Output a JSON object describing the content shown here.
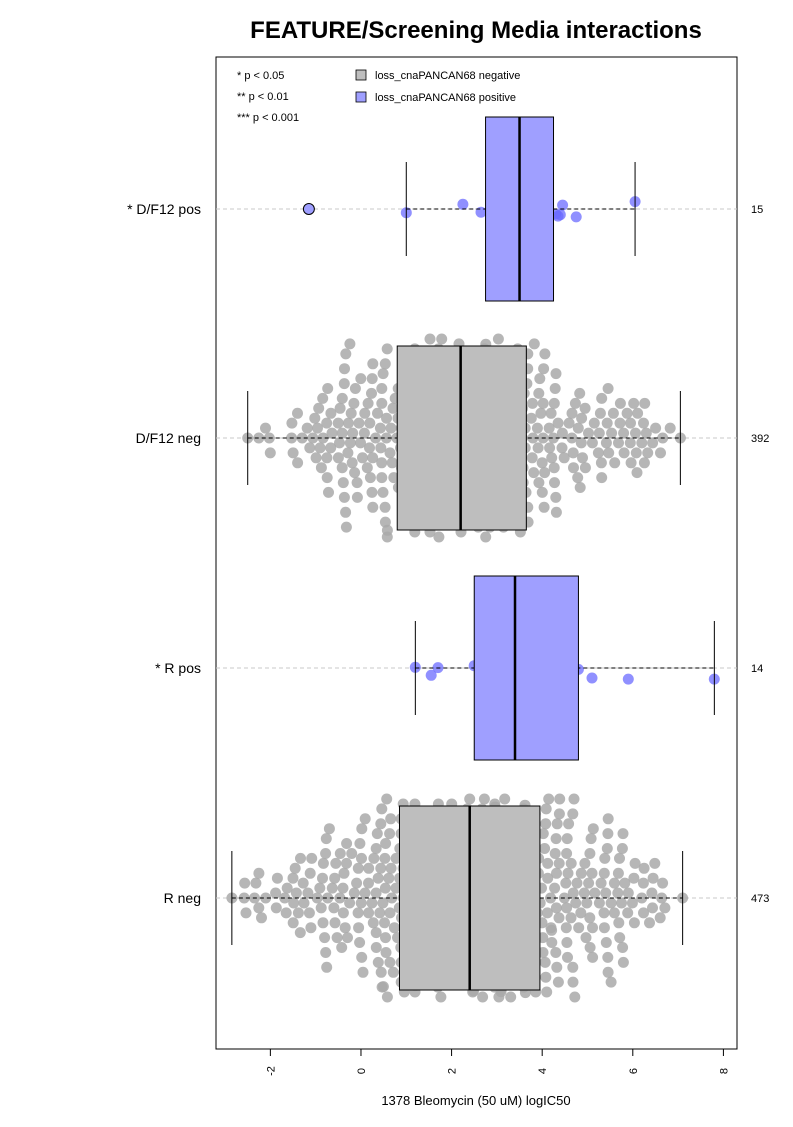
{
  "chart_data": {
    "type": "box",
    "title": "FEATURE/Screening Media interactions",
    "xlabel": "1378 Bleomycin (50 uM) logIC50",
    "ylabel": "",
    "xlim": [
      -3.2,
      8.3
    ],
    "x_ticks": [
      -2,
      0,
      2,
      4,
      6,
      8
    ],
    "x_tick_labels": [
      "-2",
      "0",
      "2",
      "4",
      "6",
      "8"
    ],
    "grid": false,
    "legend_position": "top-left",
    "significance_legend": [
      "* p < 0.05",
      "** p < 0.01",
      "*** p < 0.001"
    ],
    "legend": [
      {
        "label": "loss_cnaPANCAN68 negative",
        "color": "#bebebe"
      },
      {
        "label": "loss_cnaPANCAN68 positive",
        "color": "#9f9fff"
      }
    ],
    "colors": {
      "negative_box": "#bebebe",
      "negative_point": "#a9a9a9",
      "positive_box": "#9f9fff",
      "positive_point": "#6b6bff"
    },
    "groups": [
      {
        "label": "* D/F12 pos",
        "count": "15",
        "status": "positive",
        "whisker_low": 1.0,
        "q1": 2.75,
        "median": 3.5,
        "q3": 4.25,
        "whisker_high": 6.05,
        "outliers": [
          -1.15
        ],
        "points": [
          1.0,
          2.25,
          2.65,
          2.9,
          2.95,
          3.1,
          3.5,
          3.75,
          4.3,
          4.75,
          4.4,
          4.45,
          4.35,
          6.05,
          3.95
        ]
      },
      {
        "label": "D/F12 neg",
        "count": "392",
        "status": "negative",
        "whisker_low": -2.5,
        "q1": 0.8,
        "median": 2.2,
        "q3": 3.65,
        "whisker_high": 7.05,
        "outliers": [],
        "n_points": 392
      },
      {
        "label": "* R pos",
        "count": "14",
        "status": "positive",
        "whisker_low": 1.2,
        "q1": 2.5,
        "median": 3.4,
        "q3": 4.8,
        "whisker_high": 7.8,
        "outliers": [],
        "points": [
          1.2,
          1.55,
          1.7,
          2.5,
          2.95,
          3.0,
          3.1,
          3.75,
          4.15,
          4.65,
          4.8,
          5.1,
          5.9,
          7.8
        ]
      },
      {
        "label": "R neg",
        "count": "473",
        "status": "negative",
        "whisker_low": -2.85,
        "q1": 0.85,
        "median": 2.4,
        "q3": 3.95,
        "whisker_high": 7.1,
        "outliers": [],
        "n_points": 473
      }
    ]
  }
}
